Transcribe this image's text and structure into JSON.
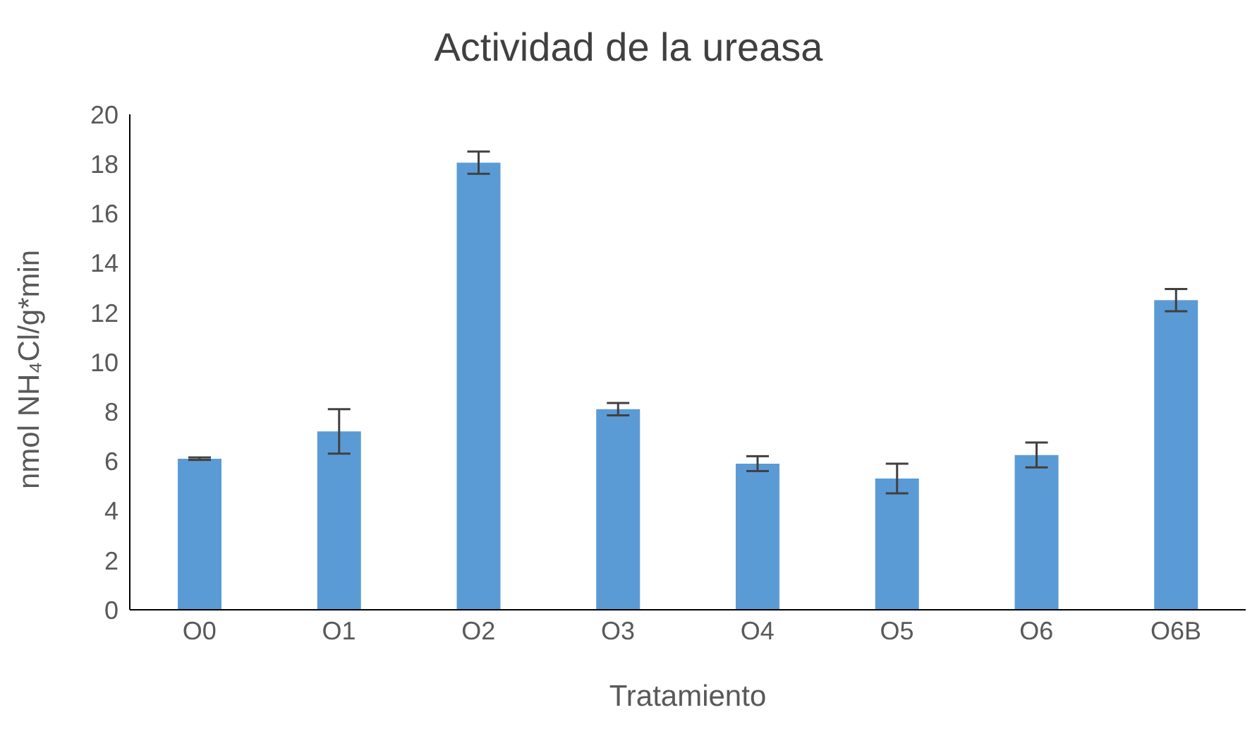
{
  "chart_data": {
    "type": "bar",
    "title": "Actividad de la ureasa",
    "xlabel": "Tratamiento",
    "ylabel": "nmol NH₄Cl/g*min",
    "categories": [
      "O0",
      "O1",
      "O2",
      "O3",
      "O4",
      "O5",
      "O6",
      "O6B"
    ],
    "values": [
      6.1,
      7.2,
      18.05,
      8.1,
      5.9,
      5.3,
      6.25,
      12.5
    ],
    "errors": [
      0.05,
      0.9,
      0.45,
      0.25,
      0.3,
      0.6,
      0.5,
      0.45
    ],
    "color": "#5b9bd5",
    "ylim": [
      0,
      20
    ],
    "yticks": [
      0,
      2,
      4,
      6,
      8,
      10,
      12,
      14,
      16,
      18,
      20
    ],
    "grid": false,
    "legend": false
  }
}
